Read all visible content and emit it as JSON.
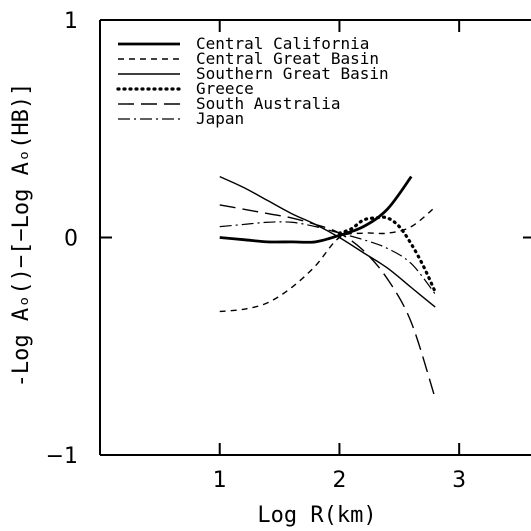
{
  "chart_data": {
    "type": "line",
    "title": "",
    "xlabel": "Log R(km)",
    "ylabel": "-Log Aₒ()−[−Log Aₒ(HB)]",
    "xlim": [
      0.0,
      3.6
    ],
    "ylim": [
      -1,
      1
    ],
    "x_ticks": [
      1,
      2,
      3
    ],
    "x_tick_labels": [
      "1",
      "2",
      "3"
    ],
    "y_ticks": [
      -1,
      0,
      1
    ],
    "y_tick_labels": [
      "−1",
      "0",
      "1"
    ],
    "grid": false,
    "legend": "top-left",
    "series": [
      {
        "name": "Central California",
        "style": "solid-thick",
        "x": [
          1.0,
          1.2,
          1.4,
          1.6,
          1.8,
          2.0,
          2.2,
          2.4,
          2.6
        ],
        "y": [
          0.0,
          -0.01,
          -0.02,
          -0.02,
          -0.02,
          0.01,
          0.05,
          0.13,
          0.28
        ]
      },
      {
        "name": "Central Great Basin",
        "style": "dashed",
        "x": [
          1.0,
          1.2,
          1.4,
          1.6,
          1.8,
          2.0,
          2.2,
          2.4,
          2.6,
          2.8
        ],
        "y": [
          -0.34,
          -0.33,
          -0.3,
          -0.23,
          -0.13,
          0.0,
          0.02,
          0.02,
          0.05,
          0.14
        ]
      },
      {
        "name": "Southern Great Basin",
        "style": "solid-thin",
        "x": [
          1.0,
          1.2,
          1.4,
          1.6,
          1.8,
          2.0,
          2.2,
          2.4,
          2.6,
          2.8
        ],
        "y": [
          0.28,
          0.23,
          0.17,
          0.11,
          0.06,
          0.0,
          -0.07,
          -0.14,
          -0.23,
          -0.32
        ]
      },
      {
        "name": "Greece",
        "style": "dotted",
        "x": [
          2.0,
          2.1,
          2.2,
          2.3,
          2.4,
          2.5,
          2.6,
          2.7,
          2.8
        ],
        "y": [
          0.02,
          0.04,
          0.08,
          0.09,
          0.09,
          0.05,
          -0.03,
          -0.13,
          -0.25
        ]
      },
      {
        "name": "South Australia",
        "style": "long-dash",
        "x": [
          1.0,
          1.2,
          1.4,
          1.6,
          1.8,
          2.0,
          2.2,
          2.4,
          2.6,
          2.8
        ],
        "y": [
          0.15,
          0.13,
          0.11,
          0.09,
          0.06,
          0.02,
          -0.06,
          -0.19,
          -0.39,
          -0.74
        ]
      },
      {
        "name": "Japan",
        "style": "dash-dot",
        "x": [
          1.0,
          1.2,
          1.4,
          1.6,
          1.8,
          2.0,
          2.2,
          2.4,
          2.6,
          2.8
        ],
        "y": [
          0.05,
          0.06,
          0.07,
          0.07,
          0.05,
          0.02,
          -0.01,
          -0.05,
          -0.12,
          -0.26
        ]
      }
    ]
  }
}
